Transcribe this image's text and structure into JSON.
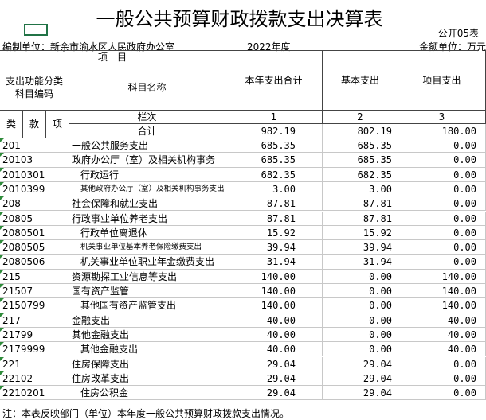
{
  "header": {
    "title": "一般公共预算财政拨款支出决算表",
    "form_no": "公开05表",
    "unit": "编制单位：新余市渝水区人民政府办公室",
    "year": "2022年度",
    "currency": "金额单位：万元"
  },
  "table": {
    "columns": {
      "item": "项　目",
      "code": "支出功能分类科目编码",
      "name": "科目名称",
      "total": "本年支出合计",
      "basic": "基本支出",
      "project": "项目支出",
      "lei": "类",
      "kuan": "款",
      "xiang": "项",
      "lanci": "栏次",
      "n1": "1",
      "n2": "2",
      "n3": "3"
    },
    "total_row": {
      "label": "合计",
      "total": "982.19",
      "basic": "802.19",
      "project": "180.00"
    },
    "rows": [
      [
        "201",
        "一般公共服务支出",
        "685.35",
        "685.35",
        "0.00"
      ],
      [
        "20103",
        "政府办公厅（室）及相关机构事务",
        "685.35",
        "685.35",
        "0.00"
      ],
      [
        "2010301",
        "行政运行",
        "682.35",
        "682.35",
        "0.00"
      ],
      [
        "2010399",
        "其他政府办公厅（室）及相关机构事务支出",
        "3.00",
        "3.00",
        "0.00"
      ],
      [
        "208",
        "社会保障和就业支出",
        "87.81",
        "87.81",
        "0.00"
      ],
      [
        "20805",
        "行政事业单位养老支出",
        "87.81",
        "87.81",
        "0.00"
      ],
      [
        "2080501",
        "行政单位离退休",
        "15.92",
        "15.92",
        "0.00"
      ],
      [
        "2080505",
        "机关事业单位基本养老保险缴费支出",
        "39.94",
        "39.94",
        "0.00"
      ],
      [
        "2080506",
        "机关事业单位职业年金缴费支出",
        "31.94",
        "31.94",
        "0.00"
      ],
      [
        "215",
        "资源勘探工业信息等支出",
        "140.00",
        "0.00",
        "140.00"
      ],
      [
        "21507",
        "国有资产监管",
        "140.00",
        "0.00",
        "140.00"
      ],
      [
        "2150799",
        "其他国有资产监管支出",
        "140.00",
        "0.00",
        "140.00"
      ],
      [
        "217",
        "金融支出",
        "40.00",
        "0.00",
        "40.00"
      ],
      [
        "21799",
        "其他金融支出",
        "40.00",
        "0.00",
        "40.00"
      ],
      [
        "2179999",
        "其他金融支出",
        "40.00",
        "0.00",
        "40.00"
      ],
      [
        "221",
        "住房保障支出",
        "29.04",
        "29.04",
        "0.00"
      ],
      [
        "22102",
        "住房改革支出",
        "29.04",
        "29.04",
        "0.00"
      ],
      [
        "2210201",
        "住房公积金",
        "29.04",
        "29.04",
        "0.00"
      ]
    ]
  },
  "note": "注：本表反映部门（单位）本年度一般公共预算财政拨款支出情况。"
}
